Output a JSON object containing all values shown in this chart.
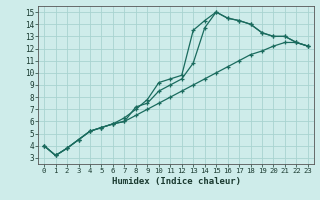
{
  "xlabel": "Humidex (Indice chaleur)",
  "xlim": [
    -0.5,
    23.5
  ],
  "ylim": [
    2.5,
    15.5
  ],
  "xticks": [
    0,
    1,
    2,
    3,
    4,
    5,
    6,
    7,
    8,
    9,
    10,
    11,
    12,
    13,
    14,
    15,
    16,
    17,
    18,
    19,
    20,
    21,
    22,
    23
  ],
  "yticks": [
    3,
    4,
    5,
    6,
    7,
    8,
    9,
    10,
    11,
    12,
    13,
    14,
    15
  ],
  "bg_color": "#ceecea",
  "grid_color": "#a8d4d0",
  "line_color": "#1a6b5e",
  "line1_x": [
    0,
    1,
    2,
    3,
    4,
    5,
    6,
    7,
    8,
    9,
    10,
    11,
    12,
    13,
    14,
    15,
    16,
    17,
    18,
    19,
    20,
    21,
    22,
    23
  ],
  "line1_y": [
    4.0,
    3.2,
    3.8,
    4.5,
    5.2,
    5.5,
    5.8,
    6.3,
    7.0,
    7.8,
    9.2,
    9.5,
    9.8,
    13.5,
    14.3,
    15.0,
    14.5,
    14.3,
    14.0,
    13.3,
    13.0,
    13.0,
    12.5,
    12.2
  ],
  "line2_x": [
    0,
    1,
    2,
    3,
    4,
    5,
    6,
    7,
    8,
    9,
    10,
    11,
    12,
    13,
    14,
    15,
    16,
    17,
    18,
    19,
    20,
    21,
    22,
    23
  ],
  "line2_y": [
    4.0,
    3.2,
    3.8,
    4.5,
    5.2,
    5.5,
    5.8,
    6.0,
    7.2,
    7.5,
    8.5,
    9.0,
    9.5,
    10.8,
    13.7,
    15.0,
    14.5,
    14.3,
    14.0,
    13.3,
    13.0,
    13.0,
    12.5,
    12.2
  ],
  "line3_x": [
    0,
    1,
    2,
    3,
    4,
    5,
    6,
    7,
    8,
    9,
    10,
    11,
    12,
    13,
    14,
    15,
    16,
    17,
    18,
    19,
    20,
    21,
    22,
    23
  ],
  "line3_y": [
    4.0,
    3.2,
    3.8,
    4.5,
    5.2,
    5.5,
    5.8,
    6.0,
    6.5,
    7.0,
    7.5,
    8.0,
    8.5,
    9.0,
    9.5,
    10.0,
    10.5,
    11.0,
    11.5,
    11.8,
    12.2,
    12.5,
    12.5,
    12.2
  ]
}
